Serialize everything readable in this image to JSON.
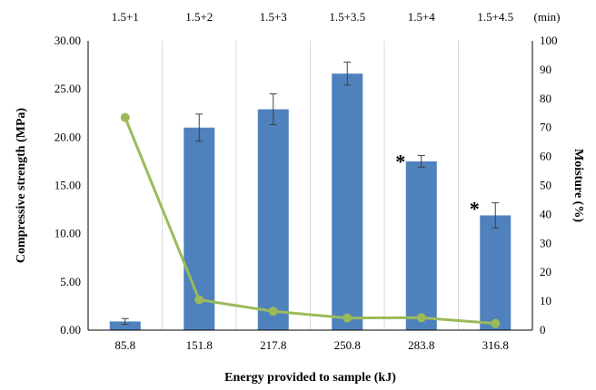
{
  "chart_data": {
    "type": "bar",
    "categories": [
      "85.8",
      "151.8",
      "217.8",
      "250.8",
      "283.8",
      "316.8"
    ],
    "top_categories": [
      "1.5+1",
      "1.5+2",
      "1.5+3",
      "1.5+3.5",
      "1.5+4",
      "1.5+4.5"
    ],
    "top_unit": "(min)",
    "xlabel": "Energy provided to sample (kJ)",
    "ylabel_left": "Compressive strength (MPa)",
    "ylabel_right": "Moisture (%)",
    "ylim_left": [
      0,
      30
    ],
    "ylim_right": [
      0,
      100
    ],
    "left_ticks": [
      "0.00",
      "5.00",
      "10.00",
      "15.00",
      "20.00",
      "25.00",
      "30.00"
    ],
    "right_ticks": [
      "0",
      "10",
      "20",
      "30",
      "40",
      "50",
      "60",
      "70",
      "80",
      "90",
      "100"
    ],
    "grid": "vertical",
    "series": [
      {
        "type": "bar",
        "axis": "left",
        "color": "#4f81bd",
        "values": [
          0.9,
          21.0,
          22.9,
          26.6,
          17.5,
          11.9
        ],
        "errors": [
          0.3,
          1.4,
          1.6,
          1.2,
          0.6,
          1.3
        ],
        "significance": [
          "",
          "",
          "",
          "",
          "*",
          "*"
        ]
      },
      {
        "type": "line",
        "axis": "right",
        "color": "#9bbb59",
        "values": [
          73.5,
          10.5,
          6.5,
          4.2,
          4.3,
          2.3
        ]
      }
    ]
  }
}
